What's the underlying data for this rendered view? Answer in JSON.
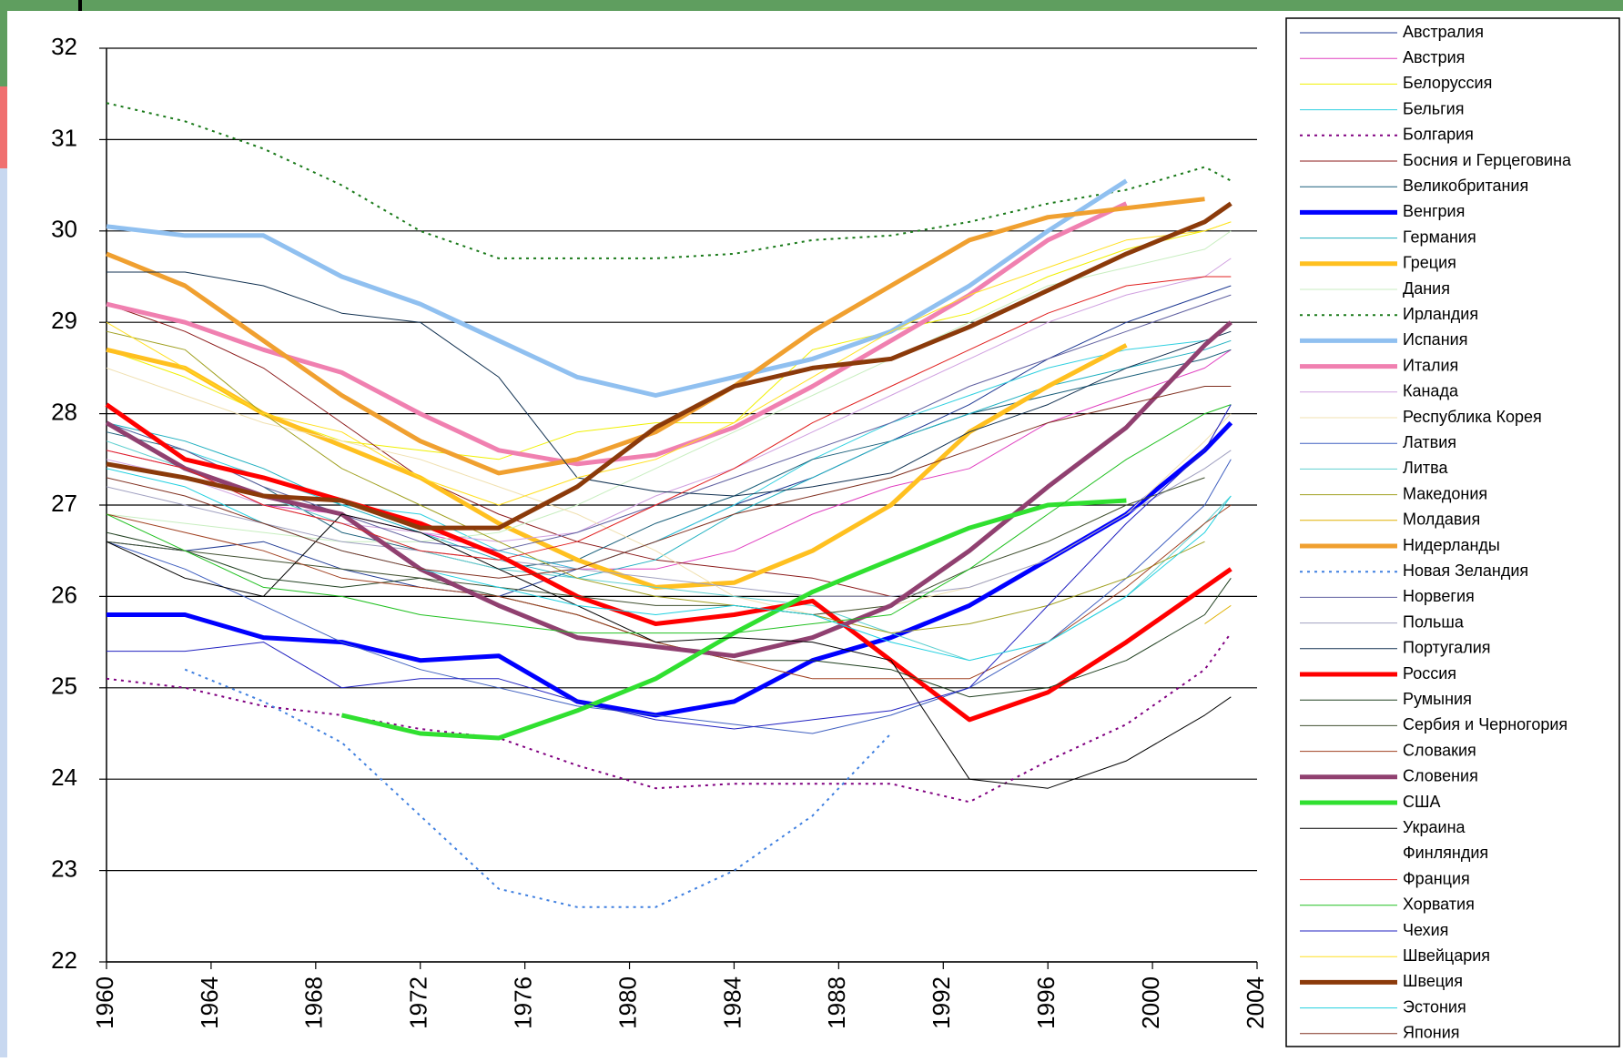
{
  "chart_data": {
    "type": "line",
    "x": [
      1960,
      1963,
      1966,
      1969,
      1972,
      1975,
      1978,
      1981,
      1984,
      1987,
      1990,
      1993,
      1996,
      1999,
      2002,
      2003
    ],
    "xlim": [
      1960,
      2004
    ],
    "xticks": [
      1960,
      1964,
      1968,
      1972,
      1976,
      1980,
      1984,
      1988,
      1992,
      1996,
      2000,
      2004
    ],
    "ylim": [
      22,
      32
    ],
    "yticks": [
      22,
      23,
      24,
      25,
      26,
      27,
      28,
      29,
      30,
      31,
      32
    ],
    "grid": true,
    "legend": "right",
    "series": [
      {
        "name": "Австралия",
        "color": "#1f3a93",
        "linewidth": 1,
        "dashed": false,
        "values": [
          26.6,
          26.5,
          26.6,
          26.3,
          26.1,
          26.0,
          26.3,
          26.6,
          27.0,
          27.3,
          27.7,
          28.1,
          28.6,
          29.0,
          29.3,
          29.4
        ]
      },
      {
        "name": "Австрия",
        "color": "#e040c0",
        "linewidth": 1,
        "dashed": false,
        "values": [
          27.6,
          27.4,
          27.0,
          26.9,
          26.7,
          26.5,
          26.3,
          26.3,
          26.5,
          26.9,
          27.2,
          27.4,
          27.9,
          28.2,
          28.5,
          28.7
        ]
      },
      {
        "name": "Белоруссия",
        "color": "#f0f000",
        "linewidth": 1,
        "dashed": false,
        "values": [
          28.7,
          28.4,
          28.0,
          27.7,
          27.6,
          27.5,
          27.8,
          27.9,
          27.9,
          28.7,
          28.9,
          29.1,
          29.5,
          29.8,
          30.0,
          30.1
        ]
      },
      {
        "name": "Бельгия",
        "color": "#30d0e0",
        "linewidth": 1,
        "dashed": false,
        "values": [
          27.9,
          27.6,
          27.3,
          27.0,
          26.9,
          26.5,
          26.3,
          26.6,
          27.0,
          27.5,
          27.9,
          28.2,
          28.5,
          28.7,
          28.8,
          null
        ]
      },
      {
        "name": "Болгария",
        "color": "#800080",
        "linewidth": 2,
        "dashed": true,
        "values": [
          25.1,
          25.0,
          24.8,
          24.7,
          24.55,
          24.45,
          24.15,
          23.9,
          23.95,
          23.95,
          23.95,
          23.75,
          24.2,
          24.6,
          25.2,
          25.6
        ]
      },
      {
        "name": "Босния и Герцеговина",
        "color": "#8b1a1a",
        "linewidth": 1,
        "dashed": false,
        "values": [
          29.2,
          28.9,
          28.5,
          27.9,
          27.3,
          26.9,
          26.6,
          26.4,
          26.3,
          26.2,
          26.0,
          null,
          null,
          null,
          null,
          null
        ]
      },
      {
        "name": "Великобритания",
        "color": "#1a5f7a",
        "linewidth": 1,
        "dashed": false,
        "values": [
          27.8,
          27.6,
          27.2,
          26.7,
          26.5,
          26.3,
          26.4,
          26.8,
          27.1,
          27.5,
          27.7,
          28.0,
          28.2,
          28.4,
          28.6,
          28.7
        ]
      },
      {
        "name": "Венгрия",
        "color": "#0000ff",
        "linewidth": 5,
        "dashed": false,
        "values": [
          25.8,
          25.8,
          25.55,
          25.5,
          25.3,
          25.35,
          24.85,
          24.7,
          24.85,
          25.3,
          25.55,
          25.9,
          26.4,
          26.9,
          27.6,
          27.9
        ]
      },
      {
        "name": "Германия",
        "color": "#20b0c0",
        "linewidth": 1,
        "dashed": false,
        "values": [
          27.9,
          27.7,
          27.4,
          27.0,
          26.7,
          26.4,
          26.2,
          26.4,
          26.9,
          27.3,
          27.7,
          28.0,
          28.3,
          28.5,
          28.7,
          28.8
        ]
      },
      {
        "name": "Греция",
        "color": "#ffc020",
        "linewidth": 5,
        "dashed": false,
        "values": [
          28.7,
          28.5,
          28.0,
          27.65,
          27.3,
          26.8,
          26.4,
          26.1,
          26.15,
          26.5,
          27.0,
          27.8,
          28.3,
          28.75,
          null,
          null
        ]
      },
      {
        "name": "Дания",
        "color": "#c8eec0",
        "linewidth": 1,
        "dashed": false,
        "values": [
          26.9,
          26.8,
          26.7,
          26.6,
          26.6,
          26.7,
          27.0,
          27.4,
          27.8,
          28.2,
          28.6,
          29.0,
          29.4,
          29.6,
          29.8,
          30.0
        ]
      },
      {
        "name": "Ирландия",
        "color": "#1a7a1a",
        "linewidth": 2,
        "dashed": true,
        "values": [
          31.4,
          31.2,
          30.9,
          30.5,
          30.0,
          29.7,
          29.7,
          29.7,
          29.75,
          29.9,
          29.95,
          30.1,
          30.3,
          30.45,
          30.7,
          30.55
        ]
      },
      {
        "name": "Испания",
        "color": "#90c0f0",
        "linewidth": 5,
        "dashed": false,
        "values": [
          30.05,
          29.95,
          29.95,
          29.5,
          29.2,
          28.8,
          28.4,
          28.2,
          28.4,
          28.6,
          28.9,
          29.4,
          30.0,
          30.55,
          null,
          null
        ]
      },
      {
        "name": "Италия",
        "color": "#f080b0",
        "linewidth": 5,
        "dashed": false,
        "values": [
          29.2,
          29.0,
          28.7,
          28.45,
          28.0,
          27.6,
          27.45,
          27.55,
          27.85,
          28.3,
          28.8,
          29.3,
          29.9,
          30.3,
          null,
          null
        ]
      },
      {
        "name": "Канада",
        "color": "#d0a0e0",
        "linewidth": 1,
        "dashed": false,
        "values": [
          27.5,
          27.3,
          27.0,
          26.8,
          26.7,
          26.6,
          26.7,
          27.1,
          27.4,
          27.8,
          28.2,
          28.6,
          29.0,
          29.3,
          29.5,
          29.7
        ]
      },
      {
        "name": "Республика Корея",
        "color": "#f0e0b0",
        "linewidth": 1,
        "dashed": false,
        "values": [
          28.5,
          28.2,
          27.9,
          27.7,
          27.5,
          27.2,
          26.9,
          26.5,
          26.0,
          25.8,
          25.9,
          26.1,
          26.4,
          26.9,
          27.7,
          28.0
        ]
      },
      {
        "name": "Латвия",
        "color": "#4060c0",
        "linewidth": 1,
        "dashed": false,
        "values": [
          26.6,
          26.3,
          25.9,
          25.5,
          25.2,
          25.0,
          24.8,
          24.7,
          24.6,
          24.5,
          24.7,
          25.0,
          25.5,
          26.2,
          27.0,
          27.5
        ]
      },
      {
        "name": "Литва",
        "color": "#60d0d0",
        "linewidth": 1,
        "dashed": false,
        "values": [
          27.7,
          27.4,
          27.1,
          26.8,
          26.5,
          26.3,
          26.2,
          26.1,
          26.0,
          25.9,
          25.6,
          25.3,
          25.5,
          26.0,
          26.8,
          27.1
        ]
      },
      {
        "name": "Македония",
        "color": "#a0a020",
        "linewidth": 1,
        "dashed": false,
        "values": [
          28.9,
          28.7,
          28.0,
          27.4,
          27.0,
          26.6,
          26.2,
          26.0,
          25.9,
          25.8,
          25.6,
          25.7,
          25.9,
          26.2,
          26.6,
          null
        ]
      },
      {
        "name": "Молдавия",
        "color": "#e0b000",
        "linewidth": 1,
        "dashed": false,
        "values": [
          null,
          null,
          null,
          null,
          null,
          null,
          null,
          null,
          null,
          null,
          null,
          null,
          null,
          null,
          25.7,
          25.9
        ]
      },
      {
        "name": "Нидерланды",
        "color": "#f0a030",
        "linewidth": 5,
        "dashed": false,
        "values": [
          29.75,
          29.4,
          28.8,
          28.2,
          27.7,
          27.35,
          27.5,
          27.8,
          28.3,
          28.9,
          29.4,
          29.9,
          30.15,
          30.25,
          30.35,
          null
        ]
      },
      {
        "name": "Новая Зеландия",
        "color": "#4080e0",
        "linewidth": 2,
        "dashed": true,
        "values": [
          null,
          25.2,
          24.85,
          24.4,
          23.6,
          22.8,
          22.6,
          22.6,
          23.0,
          23.6,
          24.5,
          null,
          null,
          null,
          null,
          null
        ]
      },
      {
        "name": "Норвегия",
        "color": "#6060a0",
        "linewidth": 1,
        "dashed": false,
        "values": [
          27.9,
          27.6,
          27.2,
          26.9,
          26.6,
          26.5,
          26.7,
          27.0,
          27.3,
          27.6,
          27.9,
          28.3,
          28.6,
          28.9,
          29.2,
          29.3
        ]
      },
      {
        "name": "Польша",
        "color": "#a0a0c0",
        "linewidth": 1,
        "dashed": false,
        "values": [
          27.2,
          27.0,
          26.8,
          26.6,
          26.5,
          26.4,
          26.3,
          26.2,
          26.1,
          26.0,
          26.0,
          26.1,
          26.4,
          26.9,
          27.4,
          27.6
        ]
      },
      {
        "name": "Португалия",
        "color": "#103050",
        "linewidth": 1,
        "dashed": false,
        "values": [
          29.55,
          29.55,
          29.4,
          29.1,
          29.0,
          28.4,
          27.3,
          27.15,
          27.1,
          27.2,
          27.35,
          27.8,
          28.1,
          28.5,
          28.8,
          28.9
        ]
      },
      {
        "name": "Россия",
        "color": "#ff0000",
        "linewidth": 5,
        "dashed": false,
        "values": [
          28.1,
          27.5,
          27.3,
          27.05,
          26.8,
          26.45,
          26.0,
          25.7,
          25.8,
          25.95,
          25.3,
          24.65,
          24.95,
          25.5,
          26.1,
          26.3
        ]
      },
      {
        "name": "Румыния",
        "color": "#204020",
        "linewidth": 1,
        "dashed": false,
        "values": [
          26.7,
          26.5,
          26.2,
          26.1,
          26.2,
          26.0,
          25.8,
          25.5,
          25.3,
          25.3,
          25.2,
          24.9,
          25.0,
          25.3,
          25.8,
          26.2
        ]
      },
      {
        "name": "Сербия и Черногория",
        "color": "#405030",
        "linewidth": 1,
        "dashed": false,
        "values": [
          26.6,
          26.5,
          26.4,
          26.3,
          26.2,
          26.1,
          26.0,
          25.9,
          25.9,
          25.8,
          25.9,
          26.3,
          26.6,
          27.0,
          27.3,
          null
        ]
      },
      {
        "name": "Словакия",
        "color": "#a04020",
        "linewidth": 1,
        "dashed": false,
        "values": [
          26.9,
          26.7,
          26.5,
          26.2,
          26.1,
          26.0,
          25.8,
          25.5,
          25.3,
          25.1,
          25.1,
          25.1,
          25.5,
          26.1,
          26.8,
          27.0
        ]
      },
      {
        "name": "Словения",
        "color": "#904070",
        "linewidth": 5,
        "dashed": false,
        "values": [
          27.9,
          27.4,
          27.1,
          26.9,
          26.3,
          25.9,
          25.55,
          25.45,
          25.35,
          25.55,
          25.9,
          26.5,
          27.2,
          27.85,
          28.75,
          29.0
        ]
      },
      {
        "name": "США",
        "color": "#30e030",
        "linewidth": 5,
        "dashed": false,
        "values": [
          null,
          null,
          null,
          24.7,
          24.5,
          24.45,
          24.75,
          25.1,
          25.6,
          26.05,
          26.4,
          26.75,
          27.0,
          27.05,
          null,
          null
        ]
      },
      {
        "name": "Украина",
        "color": "#000000",
        "linewidth": 1,
        "dashed": false,
        "values": [
          26.6,
          26.2,
          26.0,
          26.9,
          26.7,
          26.3,
          25.9,
          25.5,
          25.55,
          25.5,
          25.3,
          24.0,
          23.9,
          24.2,
          24.7,
          24.9
        ]
      },
      {
        "name": "Финляндия",
        "color": "#ffffff",
        "linewidth": 1,
        "dashed": false,
        "values": [
          null,
          null,
          null,
          null,
          null,
          null,
          null,
          null,
          null,
          null,
          null,
          null,
          null,
          null,
          null,
          null
        ]
      },
      {
        "name": "Франция",
        "color": "#e02020",
        "linewidth": 1,
        "dashed": false,
        "values": [
          27.6,
          27.4,
          27.0,
          26.8,
          26.5,
          26.4,
          26.6,
          27.0,
          27.4,
          27.9,
          28.3,
          28.7,
          29.1,
          29.4,
          29.5,
          29.5
        ]
      },
      {
        "name": "Хорватия",
        "color": "#20c020",
        "linewidth": 1,
        "dashed": false,
        "values": [
          26.9,
          26.5,
          26.1,
          26.0,
          25.8,
          25.7,
          25.6,
          25.6,
          25.6,
          25.7,
          25.8,
          26.3,
          26.9,
          27.5,
          28.0,
          28.1
        ]
      },
      {
        "name": "Чехия",
        "color": "#2020c0",
        "linewidth": 1,
        "dashed": false,
        "values": [
          25.4,
          25.4,
          25.5,
          25.0,
          25.1,
          25.1,
          24.85,
          24.65,
          24.55,
          24.65,
          24.75,
          25.0,
          25.9,
          26.8,
          27.6,
          28.1
        ]
      },
      {
        "name": "Швейцария",
        "color": "#ffe020",
        "linewidth": 1,
        "dashed": false,
        "values": [
          29.0,
          28.5,
          28.0,
          27.8,
          27.3,
          27.0,
          27.3,
          27.5,
          27.9,
          28.4,
          28.9,
          29.3,
          29.6,
          29.9,
          30.0,
          30.1
        ]
      },
      {
        "name": "Швеция",
        "color": "#8b3a0a",
        "linewidth": 5,
        "dashed": false,
        "values": [
          27.45,
          27.3,
          27.1,
          27.05,
          26.75,
          26.75,
          27.2,
          27.85,
          28.3,
          28.5,
          28.6,
          28.95,
          29.35,
          29.75,
          30.1,
          30.3
        ]
      },
      {
        "name": "Эстония",
        "color": "#20d0e0",
        "linewidth": 1,
        "dashed": false,
        "values": [
          27.4,
          27.2,
          26.8,
          26.5,
          26.3,
          26.1,
          25.9,
          25.8,
          25.9,
          25.8,
          25.5,
          25.3,
          25.5,
          26.0,
          26.7,
          27.1
        ]
      },
      {
        "name": "Япония",
        "color": "#803020",
        "linewidth": 1,
        "dashed": false,
        "values": [
          27.3,
          27.1,
          26.8,
          26.5,
          26.3,
          26.2,
          26.3,
          26.6,
          26.9,
          27.1,
          27.3,
          27.6,
          27.9,
          28.1,
          28.3,
          28.3
        ]
      }
    ]
  }
}
